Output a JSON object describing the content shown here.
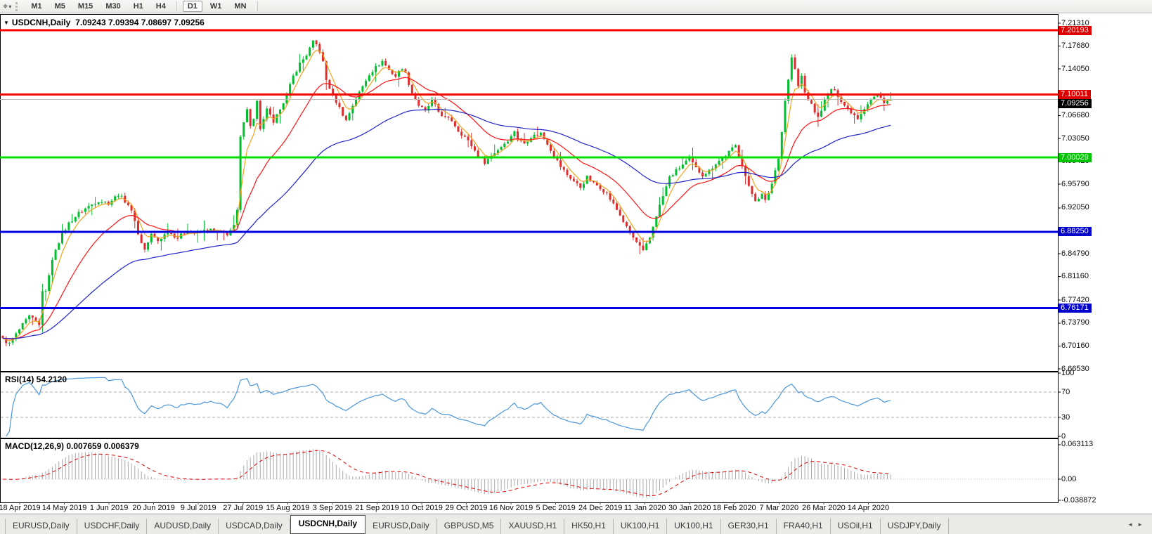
{
  "icons": {
    "dropdown": "▼",
    "pointer_tool": "⌖",
    "pointer_caret": "▾",
    "tab_scroll_left": "◄",
    "tab_scroll_right": "►"
  },
  "toolbar": {
    "timeframe_groups": [
      [
        "M1",
        "M5",
        "M15",
        "M30",
        "H1",
        "H4"
      ],
      [
        "D1",
        "W1",
        "MN"
      ]
    ],
    "active_timeframe": "D1"
  },
  "chart": {
    "symbol": "USDCNH,Daily",
    "ohlc": "7.09243 7.09394 7.08697 7.09256"
  },
  "rsi": {
    "label": "RSI(14) 54.2120",
    "ticks": [
      "100",
      "70",
      "30",
      "0"
    ],
    "levels": [
      70,
      30
    ]
  },
  "macd": {
    "label": "MACD(12,26,9) 0.007659 0.006379",
    "ticks": [
      "0.063113",
      "0.00",
      "-0.038872"
    ]
  },
  "price_axis": {
    "ticks": [
      "7.21310",
      "7.17680",
      "7.14050",
      "7.06680",
      "7.03050",
      "6.99420",
      "6.95790",
      "6.92050",
      "6.84790",
      "6.81160",
      "6.77420",
      "6.73790",
      "6.70160",
      "6.66530"
    ],
    "badges": [
      {
        "text": "7.20193",
        "bg": "#dd0000",
        "fg": "#ffffff"
      },
      {
        "text": "7.10011",
        "bg": "#dd0000",
        "fg": "#ffffff"
      },
      {
        "text": "7.09256",
        "bg": "#000000",
        "fg": "#ffffff"
      },
      {
        "text": "7.00029",
        "bg": "#00c400",
        "fg": "#ffffff"
      },
      {
        "text": "6.88250",
        "bg": "#0000cc",
        "fg": "#ffffff"
      },
      {
        "text": "6.76171",
        "bg": "#0000cc",
        "fg": "#ffffff"
      }
    ]
  },
  "date_axis": {
    "labels": [
      "18 Apr 2019",
      "14 May 2019",
      "1 Jun 2019",
      "20 Jun 2019",
      "9 Jul 2019",
      "27 Jul 2019",
      "15 Aug 2019",
      "3 Sep 2019",
      "21 Sep 2019",
      "10 Oct 2019",
      "29 Oct 2019",
      "16 Nov 2019",
      "5 Dec 2019",
      "24 Dec 2019",
      "11 Jan 2020",
      "30 Jan 2020",
      "18 Feb 2020",
      "7 Mar 2020",
      "26 Mar 2020",
      "14 Apr 2020"
    ]
  },
  "tabbar": {
    "tabs": [
      "EURUSD,Daily",
      "USDCHF,Daily",
      "AUDUSD,Daily",
      "USDCAD,Daily",
      "USDCNH,Daily",
      "EURUSD,Daily",
      "GBPUSD,M5",
      "XAUUSD,H1",
      "HK50,H1",
      "UK100,H1",
      "UK100,H1",
      "GER30,H1",
      "FRA40,H1",
      "USOil,H1",
      "USDJPY,Daily"
    ],
    "active_index": 4
  },
  "colors": {
    "up": "#00be2d",
    "down": "#dc2e2e",
    "ma_fast": "#f6a21b",
    "ma_medium": "#ff1414",
    "ma_slow": "#1f24c8",
    "rsi": "#4a97dd",
    "rsi_levels": "#a8a8a8",
    "macd_hist": "#a8a8a8",
    "macd_signal": "#e00000",
    "current_price_line": "#bbbbbb"
  },
  "chart_data": {
    "type": "candlestick",
    "symbol": "USDCNH",
    "timeframe": "Daily",
    "title": "USDCNH,Daily 7.09243 7.09394 7.08697 7.09256",
    "ohlc_current": {
      "open": 7.09243,
      "high": 7.09394,
      "low": 7.08697,
      "close": 7.09256
    },
    "current_price": 7.09256,
    "num_candles": 270,
    "x_range": [
      "18 Apr 2019",
      "Apr 2020"
    ],
    "price_axis_range": [
      6.662,
      7.2276
    ],
    "close_keypoints": [
      [
        0,
        6.712
      ],
      [
        2,
        6.705
      ],
      [
        4,
        6.72
      ],
      [
        6,
        6.735
      ],
      [
        8,
        6.748
      ],
      [
        10,
        6.74
      ],
      [
        11,
        6.734
      ],
      [
        12,
        6.79
      ],
      [
        13,
        6.786
      ],
      [
        14,
        6.816
      ],
      [
        16,
        6.856
      ],
      [
        18,
        6.878
      ],
      [
        20,
        6.896
      ],
      [
        23,
        6.912
      ],
      [
        26,
        6.923
      ],
      [
        29,
        6.932
      ],
      [
        32,
        6.928
      ],
      [
        35,
        6.942
      ],
      [
        38,
        6.926
      ],
      [
        40,
        6.902
      ],
      [
        41,
        6.878
      ],
      [
        43,
        6.854
      ],
      [
        45,
        6.878
      ],
      [
        47,
        6.868
      ],
      [
        50,
        6.883
      ],
      [
        53,
        6.873
      ],
      [
        56,
        6.885
      ],
      [
        59,
        6.879
      ],
      [
        62,
        6.887
      ],
      [
        65,
        6.883
      ],
      [
        68,
        6.879
      ],
      [
        70,
        6.891
      ],
      [
        71,
        6.916
      ],
      [
        72,
        7.031
      ],
      [
        73,
        7.059
      ],
      [
        74,
        7.079
      ],
      [
        75,
        7.049
      ],
      [
        76,
        7.063
      ],
      [
        77,
        7.089
      ],
      [
        78,
        7.043
      ],
      [
        79,
        7.059
      ],
      [
        80,
        7.079
      ],
      [
        82,
        7.053
      ],
      [
        84,
        7.079
      ],
      [
        86,
        7.099
      ],
      [
        88,
        7.129
      ],
      [
        90,
        7.149
      ],
      [
        92,
        7.163
      ],
      [
        94,
        7.183
      ],
      [
        95,
        7.179
      ],
      [
        96,
        7.169
      ],
      [
        97,
        7.151
      ],
      [
        98,
        7.123
      ],
      [
        100,
        7.099
      ],
      [
        102,
        7.079
      ],
      [
        104,
        7.059
      ],
      [
        106,
        7.083
      ],
      [
        108,
        7.103
      ],
      [
        109,
        7.113
      ],
      [
        111,
        7.133
      ],
      [
        113,
        7.143
      ],
      [
        115,
        7.153
      ],
      [
        117,
        7.139
      ],
      [
        119,
        7.129
      ],
      [
        121,
        7.143
      ],
      [
        122,
        7.133
      ],
      [
        124,
        7.103
      ],
      [
        126,
        7.083
      ],
      [
        128,
        7.073
      ],
      [
        130,
        7.091
      ],
      [
        132,
        7.073
      ],
      [
        134,
        7.063
      ],
      [
        136,
        7.059
      ],
      [
        138,
        7.043
      ],
      [
        140,
        7.033
      ],
      [
        142,
        7.019
      ],
      [
        144,
        7.003
      ],
      [
        146,
        6.993
      ],
      [
        148,
        7.003
      ],
      [
        150,
        7.013
      ],
      [
        152,
        7.023
      ],
      [
        154,
        7.033
      ],
      [
        155,
        7.043
      ],
      [
        156,
        7.029
      ],
      [
        158,
        7.023
      ],
      [
        160,
        7.033
      ],
      [
        163,
        7.039
      ],
      [
        165,
        7.023
      ],
      [
        167,
        7.003
      ],
      [
        169,
        6.986
      ],
      [
        171,
        6.973
      ],
      [
        173,
        6.963
      ],
      [
        175,
        6.953
      ],
      [
        177,
        6.969
      ],
      [
        179,
        6.959
      ],
      [
        181,
        6.953
      ],
      [
        183,
        6.943
      ],
      [
        185,
        6.926
      ],
      [
        187,
        6.909
      ],
      [
        189,
        6.889
      ],
      [
        191,
        6.873
      ],
      [
        193,
        6.859
      ],
      [
        194,
        6.851
      ],
      [
        196,
        6.873
      ],
      [
        198,
        6.909
      ],
      [
        200,
        6.939
      ],
      [
        202,
        6.969
      ],
      [
        204,
        6.979
      ],
      [
        206,
        6.989
      ],
      [
        208,
        6.999
      ],
      [
        210,
        6.983
      ],
      [
        212,
        6.973
      ],
      [
        214,
        6.979
      ],
      [
        216,
        6.991
      ],
      [
        218,
        6.999
      ],
      [
        220,
        7.009
      ],
      [
        222,
        7.019
      ],
      [
        224,
        6.989
      ],
      [
        226,
        6.953
      ],
      [
        228,
        6.933
      ],
      [
        230,
        6.941
      ],
      [
        231,
        6.931
      ],
      [
        233,
        6.959
      ],
      [
        235,
        7.001
      ],
      [
        236,
        7.041
      ],
      [
        237,
        7.091
      ],
      [
        238,
        7.123
      ],
      [
        239,
        7.159
      ],
      [
        240,
        7.139
      ],
      [
        241,
        7.113
      ],
      [
        242,
        7.129
      ],
      [
        243,
        7.103
      ],
      [
        245,
        7.083
      ],
      [
        247,
        7.063
      ],
      [
        249,
        7.091
      ],
      [
        251,
        7.109
      ],
      [
        253,
        7.099
      ],
      [
        255,
        7.083
      ],
      [
        257,
        7.073
      ],
      [
        259,
        7.063
      ],
      [
        261,
        7.079
      ],
      [
        263,
        7.093
      ],
      [
        265,
        7.099
      ],
      [
        267,
        7.089
      ],
      [
        269,
        7.09256
      ]
    ],
    "moving_averages": [
      {
        "name": "fast",
        "period": 5,
        "color": "#f6a21b"
      },
      {
        "name": "medium",
        "period": 20,
        "color": "#ff1414"
      },
      {
        "name": "slow",
        "period": 60,
        "color": "#1f24c8"
      }
    ],
    "horizontal_lines": [
      {
        "value": 7.20193,
        "color": "#ff0000",
        "width": 3
      },
      {
        "value": 7.10011,
        "color": "#ff0000",
        "width": 3
      },
      {
        "value": 7.00029,
        "color": "#00dd00",
        "width": 3
      },
      {
        "value": 6.8825,
        "color": "#0000e0",
        "width": 3
      },
      {
        "value": 6.76171,
        "color": "#0000e0",
        "width": 3
      }
    ],
    "indicators": [
      {
        "type": "RSI",
        "period": 14,
        "value": 54.212,
        "levels": [
          70,
          30
        ],
        "range": [
          0,
          100
        ]
      },
      {
        "type": "MACD",
        "fast": 12,
        "slow": 26,
        "signal": 9,
        "value": 0.007659,
        "signal_value": 0.006379,
        "axis_ticks": [
          0.063113,
          0.0,
          -0.038872
        ]
      }
    ]
  }
}
